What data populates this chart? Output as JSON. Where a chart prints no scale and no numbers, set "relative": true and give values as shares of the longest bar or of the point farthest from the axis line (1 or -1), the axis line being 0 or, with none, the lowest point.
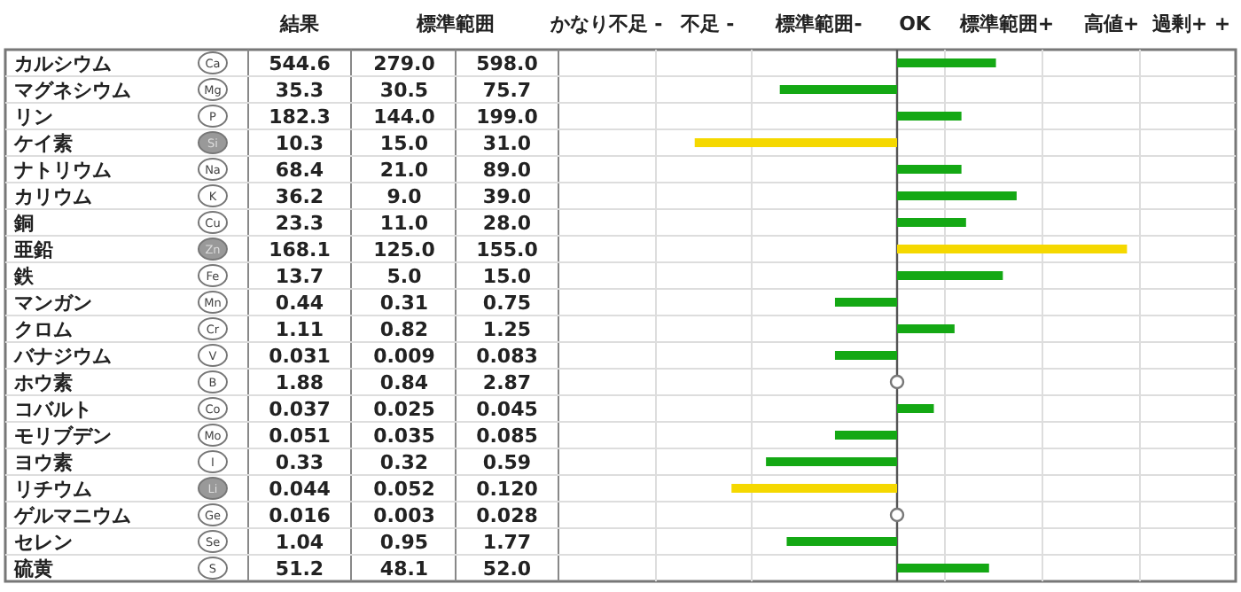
{
  "chart_data": [
    {
      "type": "other",
      "categories": [
        "結果",
        "標準範囲",
        null
      ],
      "y2_categories": [
        "Ca",
        "Mg",
        "P",
        "Si",
        "Na",
        "K",
        "Cu",
        "Zn",
        "Fe",
        "Mn",
        "Cr",
        "V",
        "B",
        "Co",
        "Mo",
        "I",
        "Li",
        "Ge",
        "Se",
        "S"
      ],
      "cell_labels": [
        [
          "544.6",
          "279.0",
          "598.0"
        ],
        [
          "35.3",
          "30.5",
          "75.7"
        ],
        [
          "182.3",
          "144.0",
          "199.0"
        ],
        [
          "10.3",
          "15.0",
          "31.0"
        ],
        [
          "68.4",
          "21.0",
          "89.0"
        ],
        [
          "36.2",
          "9.0",
          "39.0"
        ],
        [
          "23.3",
          "11.0",
          "28.0"
        ],
        [
          "168.1",
          "125.0",
          "155.0"
        ],
        [
          "13.7",
          "5.0",
          "15.0"
        ],
        [
          "0.44",
          "0.31",
          "0.75"
        ],
        [
          "1.11",
          "0.82",
          "1.25"
        ],
        [
          "0.031",
          "0.009",
          "0.083"
        ],
        [
          "1.88",
          "0.84",
          "2.87"
        ],
        [
          "0.037",
          "0.025",
          "0.045"
        ],
        [
          "0.051",
          "0.035",
          "0.085"
        ],
        [
          "0.33",
          "0.32",
          "0.59"
        ],
        [
          "0.044",
          "0.052",
          "0.120"
        ],
        [
          "0.016",
          "0.003",
          "0.028"
        ],
        [
          "1.04",
          "0.95",
          "1.77"
        ],
        [
          "51.2",
          "48.1",
          "52.0"
        ]
      ]
    },
    {
      "type": "bar",
      "orientation": "horizontal",
      "relative": true,
      "categories": [
        "カルシウム",
        "マグネシウム",
        "リン",
        "ケイ素",
        "ナトリウム",
        "カリウム",
        "銅",
        "亜鉛",
        "鉄",
        "マンガン",
        "クロム",
        "バナジウム",
        "ホウ素",
        "コバルト",
        "モリブデン",
        "ヨウ素",
        "リチウム",
        "ゲルマニウム",
        "セレン",
        "硫黄"
      ],
      "values": [
        0.43,
        -0.51,
        0.28,
        -0.88,
        0.28,
        0.52,
        0.3,
        1,
        0.46,
        -0.27,
        0.25,
        -0.27,
        0,
        0.16,
        -0.27,
        -0.57,
        -0.72,
        0,
        -0.48,
        0.4
      ],
      "colors": [
        "#14a814",
        "#14a814",
        "#14a814",
        "#f5d800",
        "#14a814",
        "#14a814",
        "#14a814",
        "#f5d800",
        "#14a814",
        "#14a814",
        "#14a814",
        "#14a814",
        "#14a814",
        "#14a814",
        "#14a814",
        "#14a814",
        "#f5d800",
        "#14a814",
        "#14a814",
        "#14a814"
      ],
      "annotations": [
        "かなり不足 -",
        "不足 -",
        "標準範囲-",
        "OK",
        "標準範囲+",
        "高値+",
        "過剰+ +"
      ]
    }
  ]
}
